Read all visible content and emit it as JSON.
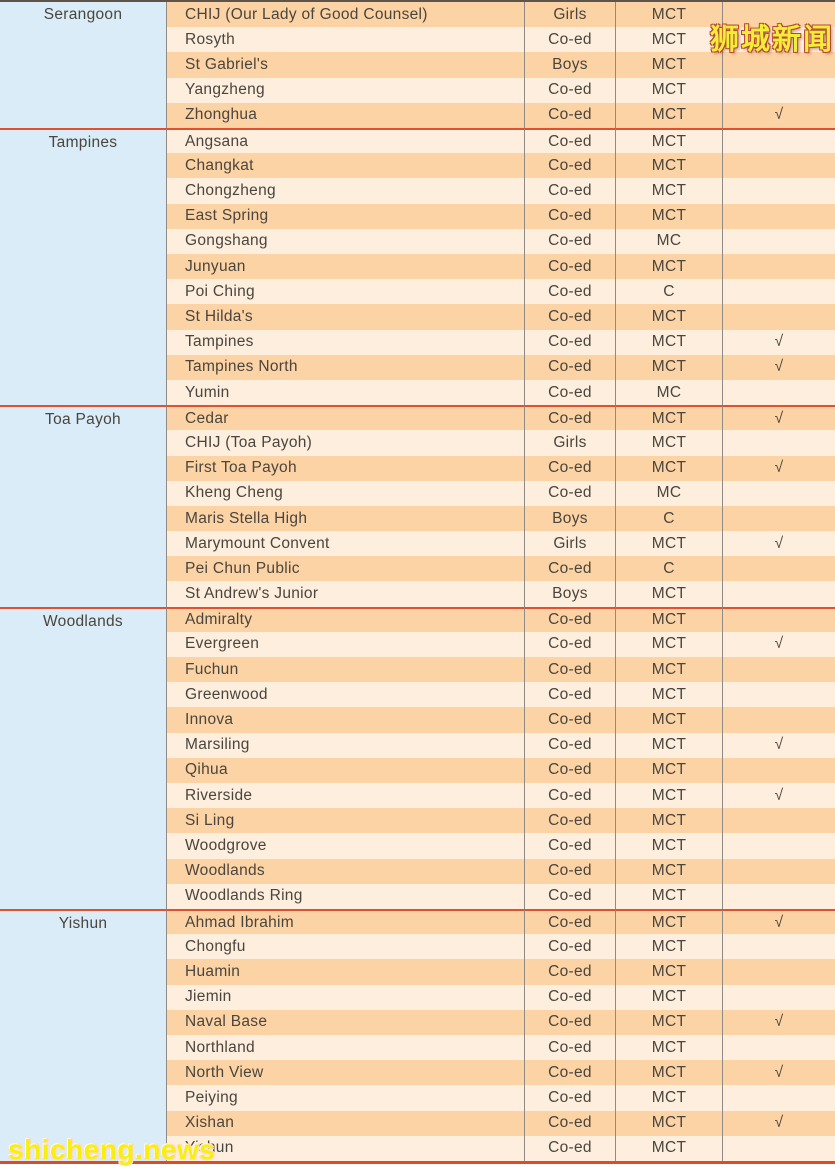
{
  "watermarks": {
    "top_right": "狮城新闻",
    "bottom_left": "shicheng.news"
  },
  "check_symbol": "√",
  "colors": {
    "area_bg": "#d9ecf7",
    "row_dark": "#fcd3a4",
    "row_light": "#fdeedd",
    "section_separator": "#e0512f",
    "bottom_border": "#e04a28",
    "top_border": "#5e544a",
    "grid_line": "#8f8a84",
    "text": "#4a453e",
    "watermark_yellow": "#f2ee35"
  },
  "sections": [
    {
      "area": "Serangoon",
      "rows": [
        {
          "school": "CHIJ (Our Lady of Good Counsel)",
          "gender": "Girls",
          "mct": "MCT",
          "check": false
        },
        {
          "school": "Rosyth",
          "gender": "Co-ed",
          "mct": "MCT",
          "check": false
        },
        {
          "school": "St Gabriel's",
          "gender": "Boys",
          "mct": "MCT",
          "check": false
        },
        {
          "school": "Yangzheng",
          "gender": "Co-ed",
          "mct": "MCT",
          "check": false
        },
        {
          "school": "Zhonghua",
          "gender": "Co-ed",
          "mct": "MCT",
          "check": true
        }
      ]
    },
    {
      "area": "Tampines",
      "rows": [
        {
          "school": "Angsana",
          "gender": "Co-ed",
          "mct": "MCT",
          "check": false
        },
        {
          "school": "Changkat",
          "gender": "Co-ed",
          "mct": "MCT",
          "check": false
        },
        {
          "school": "Chongzheng",
          "gender": "Co-ed",
          "mct": "MCT",
          "check": false
        },
        {
          "school": "East Spring",
          "gender": "Co-ed",
          "mct": "MCT",
          "check": false
        },
        {
          "school": "Gongshang",
          "gender": "Co-ed",
          "mct": "MC",
          "check": false
        },
        {
          "school": "Junyuan",
          "gender": "Co-ed",
          "mct": "MCT",
          "check": false
        },
        {
          "school": "Poi Ching",
          "gender": "Co-ed",
          "mct": "C",
          "check": false
        },
        {
          "school": "St Hilda's",
          "gender": "Co-ed",
          "mct": "MCT",
          "check": false
        },
        {
          "school": "Tampines",
          "gender": "Co-ed",
          "mct": "MCT",
          "check": true
        },
        {
          "school": "Tampines North",
          "gender": "Co-ed",
          "mct": "MCT",
          "check": true
        },
        {
          "school": "Yumin",
          "gender": "Co-ed",
          "mct": "MC",
          "check": false
        }
      ]
    },
    {
      "area": "Toa Payoh",
      "rows": [
        {
          "school": "Cedar",
          "gender": "Co-ed",
          "mct": "MCT",
          "check": true
        },
        {
          "school": "CHIJ (Toa Payoh)",
          "gender": "Girls",
          "mct": "MCT",
          "check": false
        },
        {
          "school": "First Toa Payoh",
          "gender": "Co-ed",
          "mct": "MCT",
          "check": true
        },
        {
          "school": "Kheng Cheng",
          "gender": "Co-ed",
          "mct": "MC",
          "check": false
        },
        {
          "school": "Maris Stella High",
          "gender": "Boys",
          "mct": "C",
          "check": false
        },
        {
          "school": "Marymount Convent",
          "gender": "Girls",
          "mct": "MCT",
          "check": true
        },
        {
          "school": "Pei Chun Public",
          "gender": "Co-ed",
          "mct": "C",
          "check": false
        },
        {
          "school": "St Andrew's Junior",
          "gender": "Boys",
          "mct": "MCT",
          "check": false
        }
      ]
    },
    {
      "area": "Woodlands",
      "rows": [
        {
          "school": "Admiralty",
          "gender": "Co-ed",
          "mct": "MCT",
          "check": false
        },
        {
          "school": "Evergreen",
          "gender": "Co-ed",
          "mct": "MCT",
          "check": true
        },
        {
          "school": "Fuchun",
          "gender": "Co-ed",
          "mct": "MCT",
          "check": false
        },
        {
          "school": "Greenwood",
          "gender": "Co-ed",
          "mct": "MCT",
          "check": false
        },
        {
          "school": "Innova",
          "gender": "Co-ed",
          "mct": "MCT",
          "check": false
        },
        {
          "school": "Marsiling",
          "gender": "Co-ed",
          "mct": "MCT",
          "check": true
        },
        {
          "school": "Qihua",
          "gender": "Co-ed",
          "mct": "MCT",
          "check": false
        },
        {
          "school": "Riverside",
          "gender": "Co-ed",
          "mct": "MCT",
          "check": true
        },
        {
          "school": "Si Ling",
          "gender": "Co-ed",
          "mct": "MCT",
          "check": false
        },
        {
          "school": "Woodgrove",
          "gender": "Co-ed",
          "mct": "MCT",
          "check": false
        },
        {
          "school": "Woodlands",
          "gender": "Co-ed",
          "mct": "MCT",
          "check": false
        },
        {
          "school": "Woodlands Ring",
          "gender": "Co-ed",
          "mct": "MCT",
          "check": false
        }
      ]
    },
    {
      "area": "Yishun",
      "rows": [
        {
          "school": "Ahmad Ibrahim",
          "gender": "Co-ed",
          "mct": "MCT",
          "check": true
        },
        {
          "school": "Chongfu",
          "gender": "Co-ed",
          "mct": "MCT",
          "check": false
        },
        {
          "school": "Huamin",
          "gender": "Co-ed",
          "mct": "MCT",
          "check": false
        },
        {
          "school": "Jiemin",
          "gender": "Co-ed",
          "mct": "MCT",
          "check": false
        },
        {
          "school": "Naval Base",
          "gender": "Co-ed",
          "mct": "MCT",
          "check": true
        },
        {
          "school": "Northland",
          "gender": "Co-ed",
          "mct": "MCT",
          "check": false
        },
        {
          "school": "North View",
          "gender": "Co-ed",
          "mct": "MCT",
          "check": true
        },
        {
          "school": "Peiying",
          "gender": "Co-ed",
          "mct": "MCT",
          "check": false
        },
        {
          "school": "Xishan",
          "gender": "Co-ed",
          "mct": "MCT",
          "check": true
        },
        {
          "school": "Yishun",
          "gender": "Co-ed",
          "mct": "MCT",
          "check": false
        }
      ]
    }
  ]
}
